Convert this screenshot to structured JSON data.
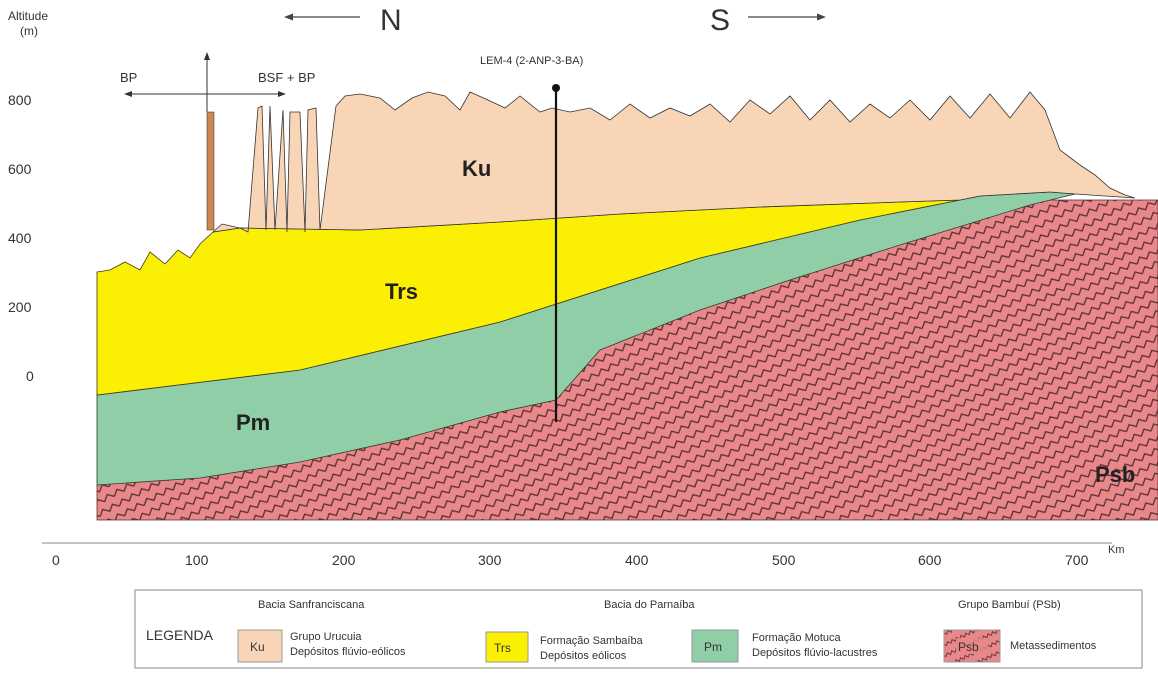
{
  "axes": {
    "y_title_line1": "Altitude",
    "y_title_line2": "(m)",
    "y_ticks": [
      "800",
      "600",
      "400",
      "200",
      "0"
    ],
    "x_ticks": [
      "0",
      "100",
      "200",
      "300",
      "400",
      "500",
      "600",
      "700"
    ],
    "x_unit": "Km"
  },
  "direction": {
    "north": "N",
    "south": "S"
  },
  "annotations": {
    "bp": "BP",
    "bsf_bp": "BSF + BP",
    "well": "LEM-4 (2-ANP-3-BA)"
  },
  "units": [
    {
      "code": "Ku",
      "color": "#f9d5b8"
    },
    {
      "code": "Trs",
      "color": "#fbf003"
    },
    {
      "code": "Pm",
      "color": "#8fcea7"
    },
    {
      "code": "Psb",
      "color": "#e8888a"
    }
  ],
  "legend": {
    "title": "LEGENDA",
    "groups": [
      "Bacia Sanfranciscana",
      "Bacia do Parnaíba",
      "Grupo Bambuí (PSb)"
    ],
    "items": [
      {
        "code": "Ku",
        "line1": "Grupo Urucuia",
        "line2": "Depósitos flúvio-eólicos"
      },
      {
        "code": "Trs",
        "line1": "Formação Sambaíba",
        "line2": "Depósitos eólicos"
      },
      {
        "code": "Pm",
        "line1": "Formação Motuca",
        "line2": "Depósitos flúvio-lacustres"
      },
      {
        "code": "Psb",
        "line1": "Metassedimentos",
        "line2": ""
      }
    ]
  }
}
